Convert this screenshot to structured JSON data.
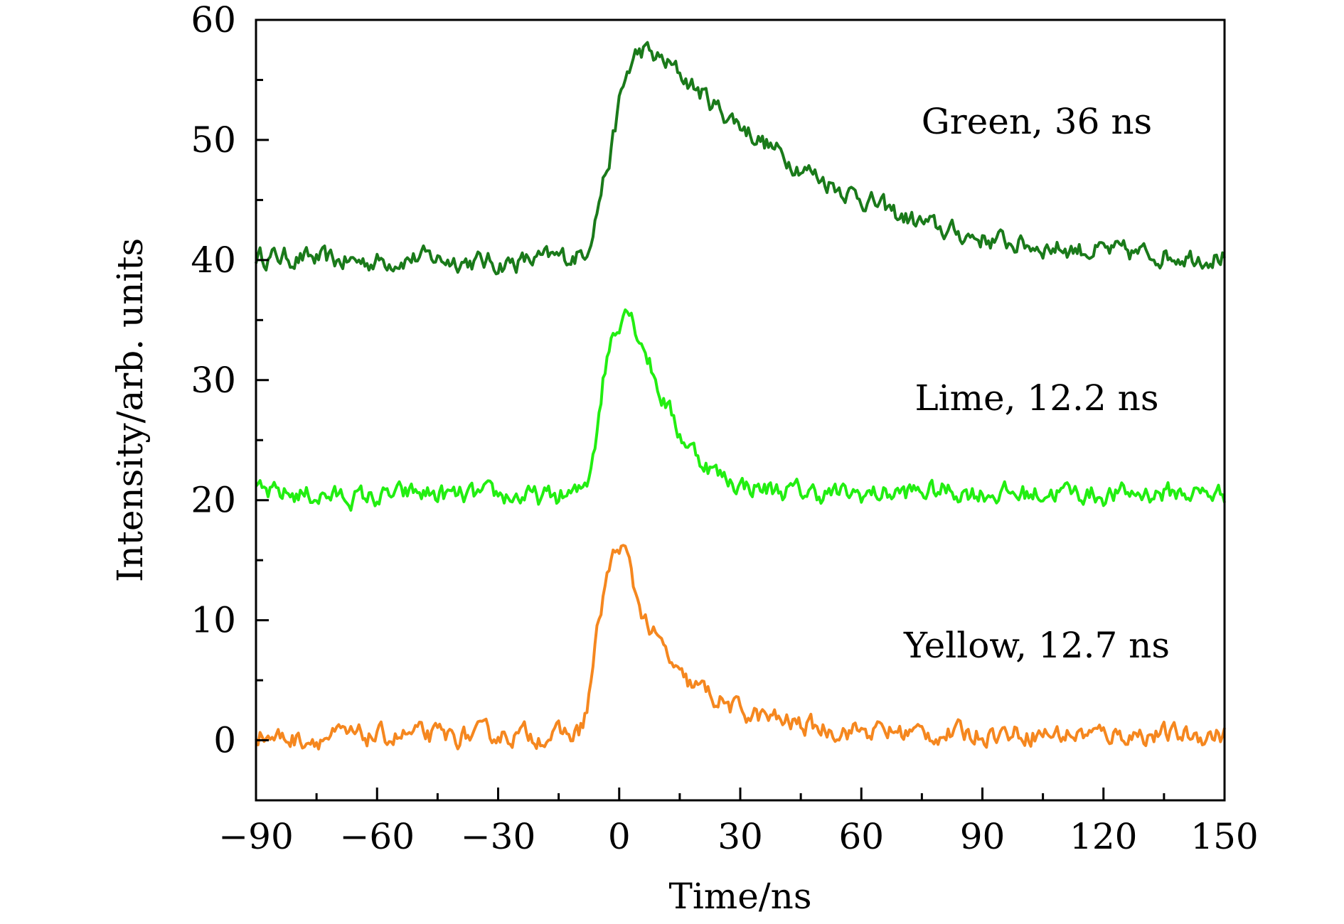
{
  "chart_data": {
    "type": "line",
    "title": "",
    "xlabel": "Time/ns",
    "ylabel": "Intensity/arb. units",
    "xlim": [
      -90,
      150
    ],
    "ylim": [
      -5,
      60
    ],
    "x_ticks": [
      -90,
      -60,
      -30,
      0,
      30,
      60,
      90,
      120,
      150
    ],
    "x_tick_labels": [
      "−90",
      "−60",
      "−30",
      "0",
      "30",
      "60",
      "90",
      "120",
      "150"
    ],
    "y_ticks": [
      0,
      10,
      20,
      30,
      40,
      50,
      60
    ],
    "y_tick_labels": [
      "0",
      "10",
      "20",
      "30",
      "40",
      "50",
      "60"
    ],
    "x_minor_step": 15,
    "y_minor_step": 5,
    "grid": false,
    "legend": "none",
    "x": [
      -90,
      -80,
      -70,
      -60,
      -50,
      -40,
      -30,
      -20,
      -15,
      -10,
      -8,
      -6,
      -4,
      -2,
      0,
      2,
      4,
      6,
      8,
      10,
      12,
      15,
      20,
      25,
      30,
      35,
      40,
      45,
      50,
      55,
      60,
      70,
      80,
      90,
      100,
      110,
      120,
      130,
      140,
      150
    ],
    "series": [
      {
        "label": "Green, 36 ns",
        "color": "#1a7a1a",
        "values": [
          40.3,
          40.2,
          39.9,
          39.9,
          40.2,
          40.0,
          39.7,
          40.0,
          40.2,
          40.4,
          41.0,
          43.5,
          46.5,
          49.0,
          53.0,
          55.5,
          57.0,
          57.5,
          57.0,
          56.7,
          56.3,
          55.5,
          54.0,
          52.5,
          51.3,
          50.0,
          48.8,
          47.8,
          46.8,
          46.0,
          45.2,
          43.6,
          42.5,
          41.8,
          41.3,
          41.0,
          40.7,
          40.5,
          40.4,
          40.3
        ]
      },
      {
        "label": "Lime, 12.2 ns",
        "color": "#22ee11",
        "values": [
          20.5,
          20.5,
          20.3,
          20.2,
          20.6,
          20.3,
          20.4,
          20.2,
          20.3,
          20.5,
          21.5,
          25.0,
          30.0,
          33.5,
          35.0,
          36.5,
          34.5,
          33.0,
          31.0,
          29.0,
          27.8,
          25.5,
          23.5,
          22.0,
          21.3,
          21.0,
          20.8,
          20.7,
          20.6,
          20.5,
          20.5,
          20.6,
          20.8,
          20.6,
          20.5,
          20.7,
          20.4,
          20.6,
          20.6,
          20.5
        ]
      },
      {
        "label": "Yellow, 12.7 ns",
        "color": "#f5871f",
        "values": [
          0.5,
          0.1,
          0.3,
          0.3,
          0.4,
          0.3,
          0.5,
          0.4,
          0.4,
          0.6,
          2.5,
          7.5,
          12.0,
          14.8,
          16.3,
          15.2,
          12.2,
          10.5,
          9.0,
          8.0,
          7.0,
          5.0,
          4.3,
          3.3,
          2.4,
          2.0,
          1.6,
          1.3,
          1.0,
          0.9,
          0.8,
          0.7,
          0.5,
          0.6,
          0.6,
          0.5,
          0.5,
          0.5,
          0.4,
          0.5
        ]
      }
    ]
  }
}
